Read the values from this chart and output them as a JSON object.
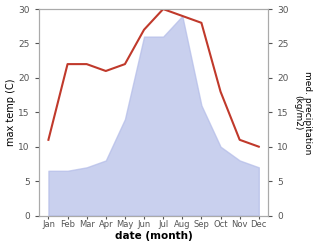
{
  "months": [
    "Jan",
    "Feb",
    "Mar",
    "Apr",
    "May",
    "Jun",
    "Jul",
    "Aug",
    "Sep",
    "Oct",
    "Nov",
    "Dec"
  ],
  "x": [
    0,
    1,
    2,
    3,
    4,
    5,
    6,
    7,
    8,
    9,
    10,
    11
  ],
  "temperature": [
    11,
    22,
    22,
    21,
    22,
    27,
    30,
    29,
    28,
    18,
    11,
    10
  ],
  "precipitation": [
    6.5,
    6.5,
    7,
    8,
    14,
    26,
    26,
    29,
    16,
    10,
    8,
    7
  ],
  "temp_color": "#c0392b",
  "precip_color": "#b3bce8",
  "temp_ylim": [
    0,
    30
  ],
  "precip_ylim": [
    0,
    30
  ],
  "xlabel": "date (month)",
  "ylabel_left": "max temp (C)",
  "ylabel_right": "med. precipitation\n(kg/m2)",
  "yticks": [
    0,
    5,
    10,
    15,
    20,
    25,
    30
  ]
}
